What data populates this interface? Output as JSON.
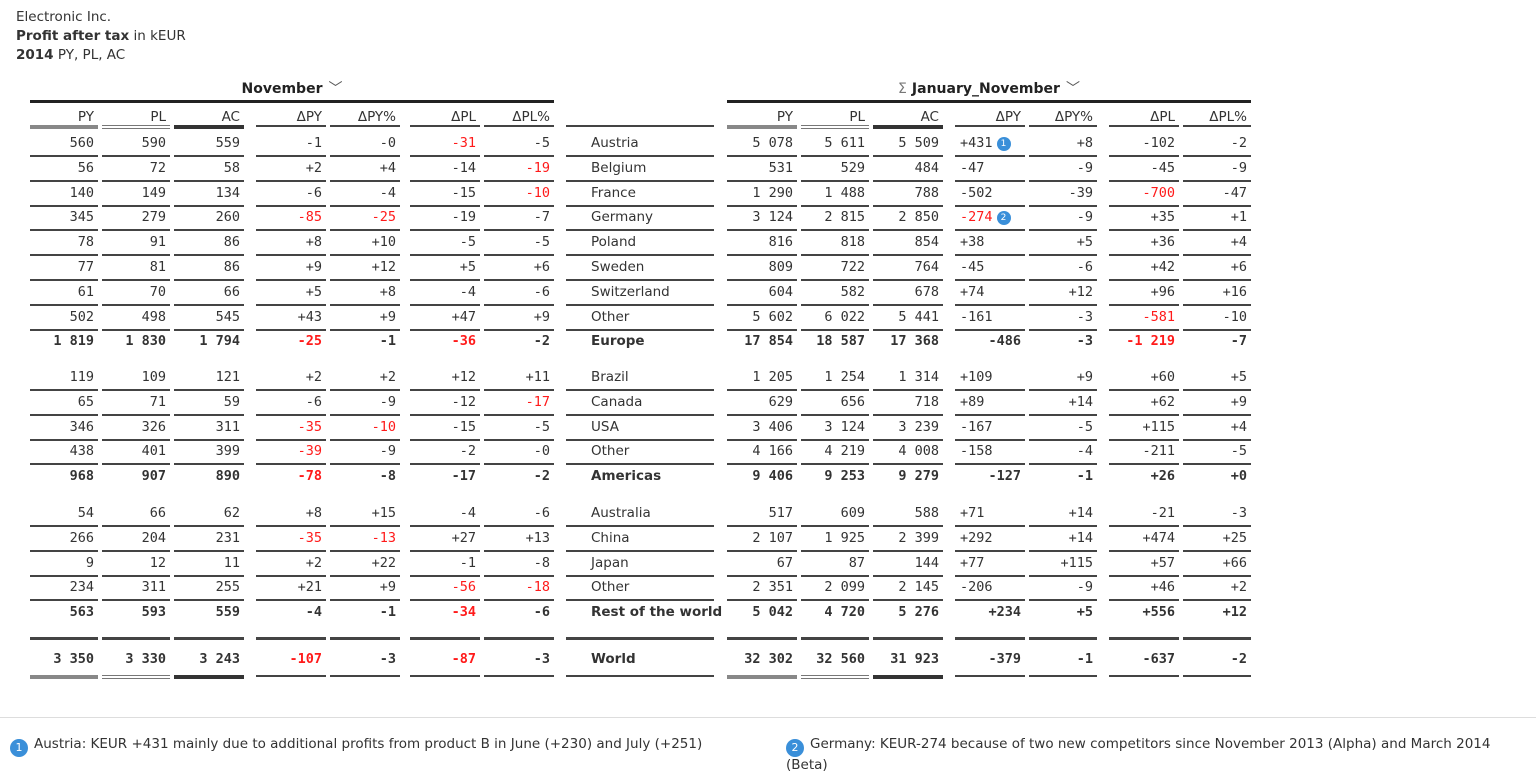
{
  "header": {
    "company": "Electronic Inc.",
    "measure": "Profit after tax",
    "unit": "in kEUR",
    "year": "2014",
    "scenarios": "PY, PL, AC"
  },
  "groups": {
    "left": {
      "title": "November",
      "icon": "chevron-down-icon"
    },
    "right": {
      "sigma": "Σ",
      "title": "January_November",
      "icon": "chevron-down-icon"
    }
  },
  "columns": [
    "PY",
    "PL",
    "AC",
    "ΔPY",
    "ΔPY%",
    "ΔPL",
    "ΔPL%"
  ],
  "colors": {
    "negative": "#ff1a1a",
    "badge": "#3a8fd9"
  },
  "sections": [
    {
      "rows": [
        {
          "label": "Austria",
          "nov": [
            "560",
            "590",
            "559",
            "-1",
            "-0",
            "-31",
            "-5"
          ],
          "ytd": [
            "5 078",
            "5 611",
            "5 509",
            "+431",
            "+8",
            "-102",
            "-2"
          ],
          "red_nov": [
            5
          ],
          "red_ytd": [],
          "badge": "1"
        },
        {
          "label": "Belgium",
          "nov": [
            "56",
            "72",
            "58",
            "+2",
            "+4",
            "-14",
            "-19"
          ],
          "ytd": [
            "531",
            "529",
            "484",
            "-47",
            "-9",
            "-45",
            "-9"
          ],
          "red_nov": [
            6
          ],
          "red_ytd": []
        },
        {
          "label": "France",
          "nov": [
            "140",
            "149",
            "134",
            "-6",
            "-4",
            "-15",
            "-10"
          ],
          "ytd": [
            "1 290",
            "1 488",
            "788",
            "-502",
            "-39",
            "-700",
            "-47"
          ],
          "red_nov": [
            6
          ],
          "red_ytd": [
            5
          ]
        },
        {
          "label": "Germany",
          "nov": [
            "345",
            "279",
            "260",
            "-85",
            "-25",
            "-19",
            "-7"
          ],
          "ytd": [
            "3 124",
            "2 815",
            "2 850",
            "-274",
            "-9",
            "+35",
            "+1"
          ],
          "red_nov": [
            3,
            4
          ],
          "red_ytd": [
            3
          ],
          "badge": "2"
        },
        {
          "label": "Poland",
          "nov": [
            "78",
            "91",
            "86",
            "+8",
            "+10",
            "-5",
            "-5"
          ],
          "ytd": [
            "816",
            "818",
            "854",
            "+38",
            "+5",
            "+36",
            "+4"
          ],
          "red_nov": [],
          "red_ytd": []
        },
        {
          "label": "Sweden",
          "nov": [
            "77",
            "81",
            "86",
            "+9",
            "+12",
            "+5",
            "+6"
          ],
          "ytd": [
            "809",
            "722",
            "764",
            "-45",
            "-6",
            "+42",
            "+6"
          ],
          "red_nov": [],
          "red_ytd": []
        },
        {
          "label": "Switzerland",
          "nov": [
            "61",
            "70",
            "66",
            "+5",
            "+8",
            "-4",
            "-6"
          ],
          "ytd": [
            "604",
            "582",
            "678",
            "+74",
            "+12",
            "+96",
            "+16"
          ],
          "red_nov": [],
          "red_ytd": []
        },
        {
          "label": "Other",
          "nov": [
            "502",
            "498",
            "545",
            "+43",
            "+9",
            "+47",
            "+9"
          ],
          "ytd": [
            "5 602",
            "6 022",
            "5 441",
            "-161",
            "-3",
            "-581",
            "-10"
          ],
          "red_nov": [],
          "red_ytd": [
            5
          ]
        }
      ],
      "total": {
        "label": "Europe",
        "nov": [
          "1 819",
          "1 830",
          "1 794",
          "-25",
          "-1",
          "-36",
          "-2"
        ],
        "ytd": [
          "17 854",
          "18 587",
          "17 368",
          "-486",
          "-3",
          "-1 219",
          "-7"
        ],
        "red_nov": [
          3,
          5
        ],
        "red_ytd": [
          5
        ]
      }
    },
    {
      "rows": [
        {
          "label": "Brazil",
          "nov": [
            "119",
            "109",
            "121",
            "+2",
            "+2",
            "+12",
            "+11"
          ],
          "ytd": [
            "1 205",
            "1 254",
            "1 314",
            "+109",
            "+9",
            "+60",
            "+5"
          ],
          "red_nov": [],
          "red_ytd": []
        },
        {
          "label": "Canada",
          "nov": [
            "65",
            "71",
            "59",
            "-6",
            "-9",
            "-12",
            "-17"
          ],
          "ytd": [
            "629",
            "656",
            "718",
            "+89",
            "+14",
            "+62",
            "+9"
          ],
          "red_nov": [
            6
          ],
          "red_ytd": []
        },
        {
          "label": "USA",
          "nov": [
            "346",
            "326",
            "311",
            "-35",
            "-10",
            "-15",
            "-5"
          ],
          "ytd": [
            "3 406",
            "3 124",
            "3 239",
            "-167",
            "-5",
            "+115",
            "+4"
          ],
          "red_nov": [
            3,
            4
          ],
          "red_ytd": []
        },
        {
          "label": "Other",
          "nov": [
            "438",
            "401",
            "399",
            "-39",
            "-9",
            "-2",
            "-0"
          ],
          "ytd": [
            "4 166",
            "4 219",
            "4 008",
            "-158",
            "-4",
            "-211",
            "-5"
          ],
          "red_nov": [
            3
          ],
          "red_ytd": []
        }
      ],
      "total": {
        "label": "Americas",
        "nov": [
          "968",
          "907",
          "890",
          "-78",
          "-8",
          "-17",
          "-2"
        ],
        "ytd": [
          "9 406",
          "9 253",
          "9 279",
          "-127",
          "-1",
          "+26",
          "+0"
        ],
        "red_nov": [
          3
        ],
        "red_ytd": []
      }
    },
    {
      "rows": [
        {
          "label": "Australia",
          "nov": [
            "54",
            "66",
            "62",
            "+8",
            "+15",
            "-4",
            "-6"
          ],
          "ytd": [
            "517",
            "609",
            "588",
            "+71",
            "+14",
            "-21",
            "-3"
          ],
          "red_nov": [],
          "red_ytd": []
        },
        {
          "label": "China",
          "nov": [
            "266",
            "204",
            "231",
            "-35",
            "-13",
            "+27",
            "+13"
          ],
          "ytd": [
            "2 107",
            "1 925",
            "2 399",
            "+292",
            "+14",
            "+474",
            "+25"
          ],
          "red_nov": [
            3,
            4
          ],
          "red_ytd": []
        },
        {
          "label": "Japan",
          "nov": [
            "9",
            "12",
            "11",
            "+2",
            "+22",
            "-1",
            "-8"
          ],
          "ytd": [
            "67",
            "87",
            "144",
            "+77",
            "+115",
            "+57",
            "+66"
          ],
          "red_nov": [],
          "red_ytd": []
        },
        {
          "label": "Other",
          "nov": [
            "234",
            "311",
            "255",
            "+21",
            "+9",
            "-56",
            "-18"
          ],
          "ytd": [
            "2 351",
            "2 099",
            "2 145",
            "-206",
            "-9",
            "+46",
            "+2"
          ],
          "red_nov": [
            5,
            6
          ],
          "red_ytd": []
        }
      ],
      "total": {
        "label": "Rest of the world",
        "nov": [
          "563",
          "593",
          "559",
          "-4",
          "-1",
          "-34",
          "-6"
        ],
        "ytd": [
          "5 042",
          "4 720",
          "5 276",
          "+234",
          "+5",
          "+556",
          "+12"
        ],
        "red_nov": [
          5
        ],
        "red_ytd": []
      }
    }
  ],
  "grand_total": {
    "label": "World",
    "nov": [
      "3 350",
      "3 330",
      "3 243",
      "-107",
      "-3",
      "-87",
      "-3"
    ],
    "ytd": [
      "32 302",
      "32 560",
      "31 923",
      "-379",
      "-1",
      "-637",
      "-2"
    ],
    "red_nov": [
      3,
      5
    ],
    "red_ytd": []
  },
  "footnotes": [
    {
      "badge": "1",
      "text": "Austria: KEUR +431 mainly due to additional profits from product B in June (+230) and July (+251)"
    },
    {
      "badge": "2",
      "text": "Germany: KEUR-274 because of two new competitors since November 2013 (Alpha) and March 2014 (Beta)"
    }
  ]
}
